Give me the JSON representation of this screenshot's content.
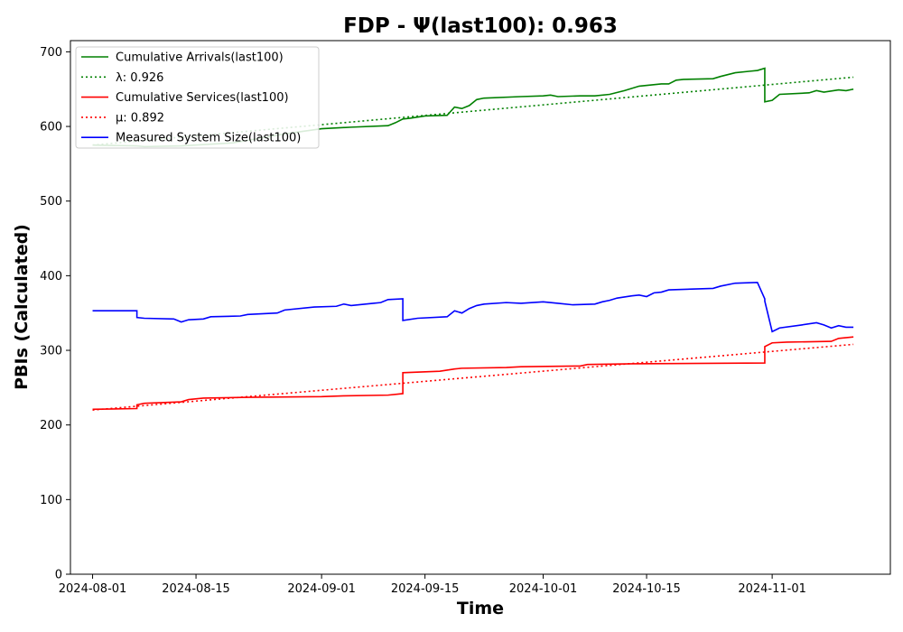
{
  "chart_data": {
    "type": "line",
    "title": "FDP -  Ψ(last100): 0.963",
    "xlabel": "Time",
    "ylabel": "PBIs (Calculated)",
    "xlim": [
      "2024-07-29",
      "2024-11-17"
    ],
    "ylim": [
      0,
      715
    ],
    "x_ticks": [
      "2024-08-01",
      "2024-08-15",
      "2024-09-01",
      "2024-09-15",
      "2024-10-01",
      "2024-10-15",
      "2024-11-01"
    ],
    "y_ticks": [
      0,
      100,
      200,
      300,
      400,
      500,
      600,
      700
    ],
    "grid": false,
    "legend_position": "top-left",
    "series": [
      {
        "name": "Cumulative Arrivals(last100)",
        "color": "#008000",
        "style": "solid",
        "points": [
          [
            "2024-08-01",
            575
          ],
          [
            "2024-08-07",
            574
          ],
          [
            "2024-08-08",
            573
          ],
          [
            "2024-08-13",
            574
          ],
          [
            "2024-08-20",
            578
          ],
          [
            "2024-08-27",
            590
          ],
          [
            "2024-09-01",
            597
          ],
          [
            "2024-09-05",
            599
          ],
          [
            "2024-09-10",
            601
          ],
          [
            "2024-09-11",
            605
          ],
          [
            "2024-09-12",
            610
          ],
          [
            "2024-09-13",
            611
          ],
          [
            "2024-09-15",
            614
          ],
          [
            "2024-09-18",
            615
          ],
          [
            "2024-09-19",
            626
          ],
          [
            "2024-09-20",
            624
          ],
          [
            "2024-09-21",
            628
          ],
          [
            "2024-09-22",
            636
          ],
          [
            "2024-09-23",
            638
          ],
          [
            "2024-09-28",
            640
          ],
          [
            "2024-10-01",
            641
          ],
          [
            "2024-10-02",
            642
          ],
          [
            "2024-10-03",
            640
          ],
          [
            "2024-10-06",
            641
          ],
          [
            "2024-10-08",
            641
          ],
          [
            "2024-10-10",
            643
          ],
          [
            "2024-10-12",
            648
          ],
          [
            "2024-10-14",
            654
          ],
          [
            "2024-10-17",
            657
          ],
          [
            "2024-10-18",
            657
          ],
          [
            "2024-10-19",
            662
          ],
          [
            "2024-10-20",
            663
          ],
          [
            "2024-10-24",
            664
          ],
          [
            "2024-10-25",
            667
          ],
          [
            "2024-10-27",
            672
          ],
          [
            "2024-10-29",
            674
          ],
          [
            "2024-10-30",
            675
          ],
          [
            "2024-10-31",
            678
          ],
          [
            "2024-10-31",
            633
          ],
          [
            "2024-11-01",
            635
          ],
          [
            "2024-11-02",
            643
          ],
          [
            "2024-11-06",
            645
          ],
          [
            "2024-11-07",
            648
          ],
          [
            "2024-11-08",
            646
          ],
          [
            "2024-11-10",
            649
          ],
          [
            "2024-11-11",
            648
          ],
          [
            "2024-11-12",
            650
          ]
        ]
      },
      {
        "name": "λ: 0.926",
        "color": "#008000",
        "style": "dotted",
        "points": [
          [
            "2024-08-01",
            575
          ],
          [
            "2024-11-12",
            666
          ]
        ]
      },
      {
        "name": "Cumulative Services(last100)",
        "color": "#ff0000",
        "style": "solid",
        "points": [
          [
            "2024-08-01",
            221
          ],
          [
            "2024-08-07",
            222
          ],
          [
            "2024-08-07",
            227
          ],
          [
            "2024-08-08",
            229
          ],
          [
            "2024-08-13",
            231
          ],
          [
            "2024-08-14",
            234
          ],
          [
            "2024-08-16",
            236
          ],
          [
            "2024-08-22",
            237
          ],
          [
            "2024-09-01",
            238
          ],
          [
            "2024-09-04",
            239
          ],
          [
            "2024-09-10",
            240
          ],
          [
            "2024-09-12",
            242
          ],
          [
            "2024-09-12",
            270
          ],
          [
            "2024-09-17",
            272
          ],
          [
            "2024-09-19",
            275
          ],
          [
            "2024-09-20",
            276
          ],
          [
            "2024-09-26",
            277
          ],
          [
            "2024-09-28",
            278
          ],
          [
            "2024-10-06",
            279
          ],
          [
            "2024-10-07",
            281
          ],
          [
            "2024-10-13",
            282
          ],
          [
            "2024-10-31",
            283
          ],
          [
            "2024-10-31",
            305
          ],
          [
            "2024-11-01",
            310
          ],
          [
            "2024-11-03",
            311
          ],
          [
            "2024-11-09",
            312
          ],
          [
            "2024-11-10",
            316
          ],
          [
            "2024-11-12",
            318
          ]
        ]
      },
      {
        "name": "μ: 0.892",
        "color": "#ff0000",
        "style": "dotted",
        "points": [
          [
            "2024-08-01",
            220
          ],
          [
            "2024-11-12",
            308
          ]
        ]
      },
      {
        "name": "Measured System Size(last100)",
        "color": "#0000ff",
        "style": "solid",
        "points": [
          [
            "2024-08-01",
            353
          ],
          [
            "2024-08-07",
            353
          ],
          [
            "2024-08-07",
            344
          ],
          [
            "2024-08-08",
            343
          ],
          [
            "2024-08-12",
            342
          ],
          [
            "2024-08-13",
            338
          ],
          [
            "2024-08-14",
            341
          ],
          [
            "2024-08-16",
            342
          ],
          [
            "2024-08-17",
            345
          ],
          [
            "2024-08-21",
            346
          ],
          [
            "2024-08-22",
            348
          ],
          [
            "2024-08-26",
            350
          ],
          [
            "2024-08-27",
            354
          ],
          [
            "2024-08-31",
            358
          ],
          [
            "2024-09-03",
            359
          ],
          [
            "2024-09-04",
            362
          ],
          [
            "2024-09-05",
            360
          ],
          [
            "2024-09-08",
            363
          ],
          [
            "2024-09-09",
            364
          ],
          [
            "2024-09-10",
            368
          ],
          [
            "2024-09-12",
            369
          ],
          [
            "2024-09-12",
            340
          ],
          [
            "2024-09-14",
            343
          ],
          [
            "2024-09-18",
            345
          ],
          [
            "2024-09-19",
            353
          ],
          [
            "2024-09-20",
            350
          ],
          [
            "2024-09-21",
            356
          ],
          [
            "2024-09-22",
            360
          ],
          [
            "2024-09-23",
            362
          ],
          [
            "2024-09-26",
            364
          ],
          [
            "2024-09-28",
            363
          ],
          [
            "2024-10-01",
            365
          ],
          [
            "2024-10-03",
            363
          ],
          [
            "2024-10-05",
            361
          ],
          [
            "2024-10-08",
            362
          ],
          [
            "2024-10-09",
            365
          ],
          [
            "2024-10-10",
            367
          ],
          [
            "2024-10-11",
            370
          ],
          [
            "2024-10-13",
            373
          ],
          [
            "2024-10-14",
            374
          ],
          [
            "2024-10-15",
            372
          ],
          [
            "2024-10-16",
            377
          ],
          [
            "2024-10-17",
            378
          ],
          [
            "2024-10-18",
            381
          ],
          [
            "2024-10-24",
            383
          ],
          [
            "2024-10-25",
            386
          ],
          [
            "2024-10-27",
            390
          ],
          [
            "2024-10-30",
            391
          ],
          [
            "2024-10-31",
            369
          ],
          [
            "2024-10-31",
            366
          ],
          [
            "2024-11-01",
            325
          ],
          [
            "2024-11-02",
            330
          ],
          [
            "2024-11-05",
            334
          ],
          [
            "2024-11-07",
            337
          ],
          [
            "2024-11-08",
            334
          ],
          [
            "2024-11-09",
            330
          ],
          [
            "2024-11-10",
            333
          ],
          [
            "2024-11-11",
            331
          ],
          [
            "2024-11-12",
            331
          ]
        ]
      }
    ]
  }
}
